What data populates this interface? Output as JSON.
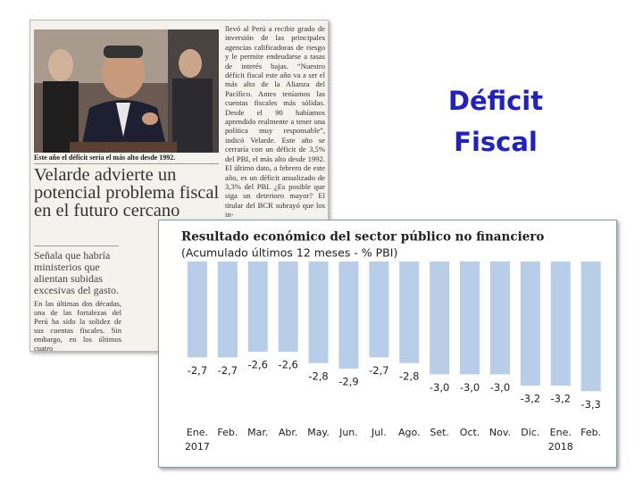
{
  "slide": {
    "title_lines": [
      "Déficit",
      "Fiscal"
    ]
  },
  "newspaper": {
    "photo_caption": "Este año el déficit sería el más alto desde 1992.",
    "headline": "Velarde advierte un potencial problema fiscal en el futuro cercano",
    "subhead": "Señala que habría ministerios que alientan subidas excesivas del gasto.",
    "lead": "En las últimas dos décadas, una de las fortalezas del Perú ha sido la solidez de sus cuentas fiscales. Sin embargo, en los últimos cuatro",
    "right_column": "llevó al Perú a recibir grado de inversión de las principales agencias calificadoras de riesgo y le permite endeudarse a tasas de interés bajas. “Nuestro déficit fiscal este año va a ser el más alto de la Alianza del Pacífico. Antes teníamos las cuentas fiscales más sólidas. Desde el 90 habíamos aprendido realmente a tener una política muy responsable”, indicó Velarde. Este año se cerraría con un déficit de 3,5% del PBI, el más alto desde 1992. El último dato, a febrero de este año, es un déficit anualizado de 3,3% del PBI. ¿Es posible que siga un deterioro mayor? El titular del BCR subrayó que los in-"
  },
  "chart_data": {
    "type": "bar",
    "title": "Resultado económico del sector público no financiero",
    "subtitle": "(Acumulado últimos 12 meses - % PBI)",
    "categories": [
      "Ene. 2017",
      "Feb.",
      "Mar.",
      "Abr.",
      "May.",
      "Jun.",
      "Jul.",
      "Ago.",
      "Set.",
      "Oct.",
      "Nov.",
      "Dic.",
      "Ene. 2018",
      "Feb."
    ],
    "values": [
      -2.7,
      -2.7,
      -2.6,
      -2.6,
      -2.8,
      -2.9,
      -2.7,
      -2.8,
      -3.0,
      -3.0,
      -3.0,
      -3.2,
      -3.2,
      -3.3
    ],
    "value_labels": [
      "-2,7",
      "-2,7",
      "-2,6",
      "-2,6",
      "-2,8",
      "-2,9",
      "-2,7",
      "-2,8",
      "-3,0",
      "-3,0",
      "-3,0",
      "-3,2",
      "-3,2",
      "-3,3"
    ],
    "color": "#b7cde8",
    "ylim": [
      -1,
      -3.5
    ]
  }
}
